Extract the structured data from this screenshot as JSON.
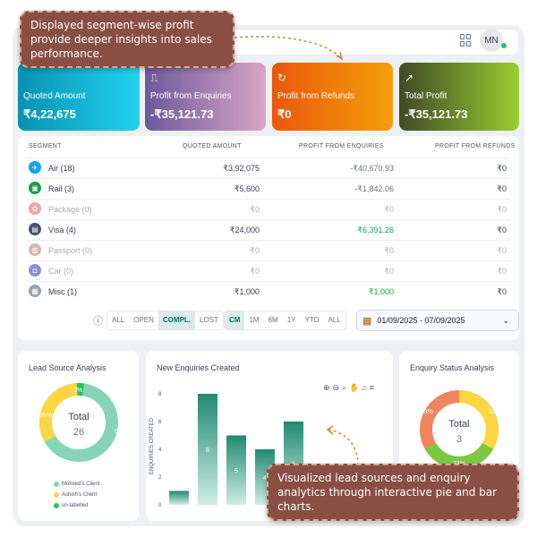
{
  "header": {
    "avatar": "MN"
  },
  "cards": [
    {
      "label": "Quoted Amount",
      "value": "₹4,22,675"
    },
    {
      "label": "Profit from Enquiries",
      "value": "-₹35,121.73"
    },
    {
      "label": "Profit from Refunds",
      "value": "₹0"
    },
    {
      "label": "Total Profit",
      "value": "-₹35,121.73"
    }
  ],
  "table": {
    "headers": [
      "SEGMENT",
      "QUOTED AMOUNT",
      "PROFIT FROM ENQUIRIES",
      "PROFIT FROM REFUNDS"
    ],
    "rows": [
      {
        "segment": "Air (18)",
        "quoted": "₹3,92,075",
        "enq": "-₹40,670.93",
        "ref": "₹0"
      },
      {
        "segment": "Rail (3)",
        "quoted": "₹5,600",
        "enq": "-₹1,842.06",
        "ref": "₹0"
      },
      {
        "segment": "Package (0)",
        "quoted": "₹0",
        "enq": "₹0",
        "ref": "₹0"
      },
      {
        "segment": "Visa (4)",
        "quoted": "₹24,000",
        "enq": "₹6,391.26",
        "ref": "₹0"
      },
      {
        "segment": "Passport (0)",
        "quoted": "₹0",
        "enq": "₹0",
        "ref": "₹0"
      },
      {
        "segment": "Car (0)",
        "quoted": "₹0",
        "enq": "₹0",
        "ref": "₹0"
      },
      {
        "segment": "Misc (1)",
        "quoted": "₹1,000",
        "enq": "₹1,000",
        "ref": "₹0"
      }
    ]
  },
  "filters": {
    "status": [
      "ALL",
      "OPEN",
      "COMPL.",
      "LOST"
    ],
    "period": [
      "CM",
      "1M",
      "6M",
      "1Y",
      "YTD",
      "ALL"
    ],
    "date_range": "01/09/2025 - 07/09/2025"
  },
  "lead_source": {
    "title": "Lead Source Analysis",
    "center_label": "Total",
    "center_value": "26",
    "slices": [
      {
        "label": "61%",
        "color": "#86d4b6"
      },
      {
        "label": "3%",
        "color": "#22c55e"
      },
      {
        "label": "35%",
        "color": "#fbd640"
      }
    ],
    "legend": [
      {
        "label": "Mohsed's Client",
        "color": "#86d4b6"
      },
      {
        "label": "Ashish's Client",
        "color": "#fbd640"
      },
      {
        "label": "un-labelled",
        "color": "#22c55e"
      }
    ]
  },
  "new_enquiries": {
    "title": "New Enquiries Created",
    "ylabel": "ENQUIRIES CREATED",
    "yticks": [
      "8",
      "6",
      "4",
      "2",
      "0"
    ],
    "bars": [
      1,
      8,
      5,
      4,
      6
    ],
    "bar_labels": [
      "",
      "8",
      "5",
      "4",
      "6"
    ]
  },
  "enquiry_status": {
    "title": "Enquiry Status Analysis",
    "center_label": "Total",
    "center_value": "3",
    "slices": [
      {
        "label": "33%",
        "color": "#fbd640"
      },
      {
        "label": "33%",
        "color": "#7ac943"
      },
      {
        "label": "33%",
        "color": "#f0855d"
      }
    ]
  },
  "callouts": {
    "top": "Displayed segment-wise profit provide deeper insights into sales performance.",
    "bottom": "Visualized lead sources and enquiry analytics through interactive pie and bar charts."
  },
  "colors": {
    "accent": "#0f766e",
    "callout": "#8a4f44"
  }
}
